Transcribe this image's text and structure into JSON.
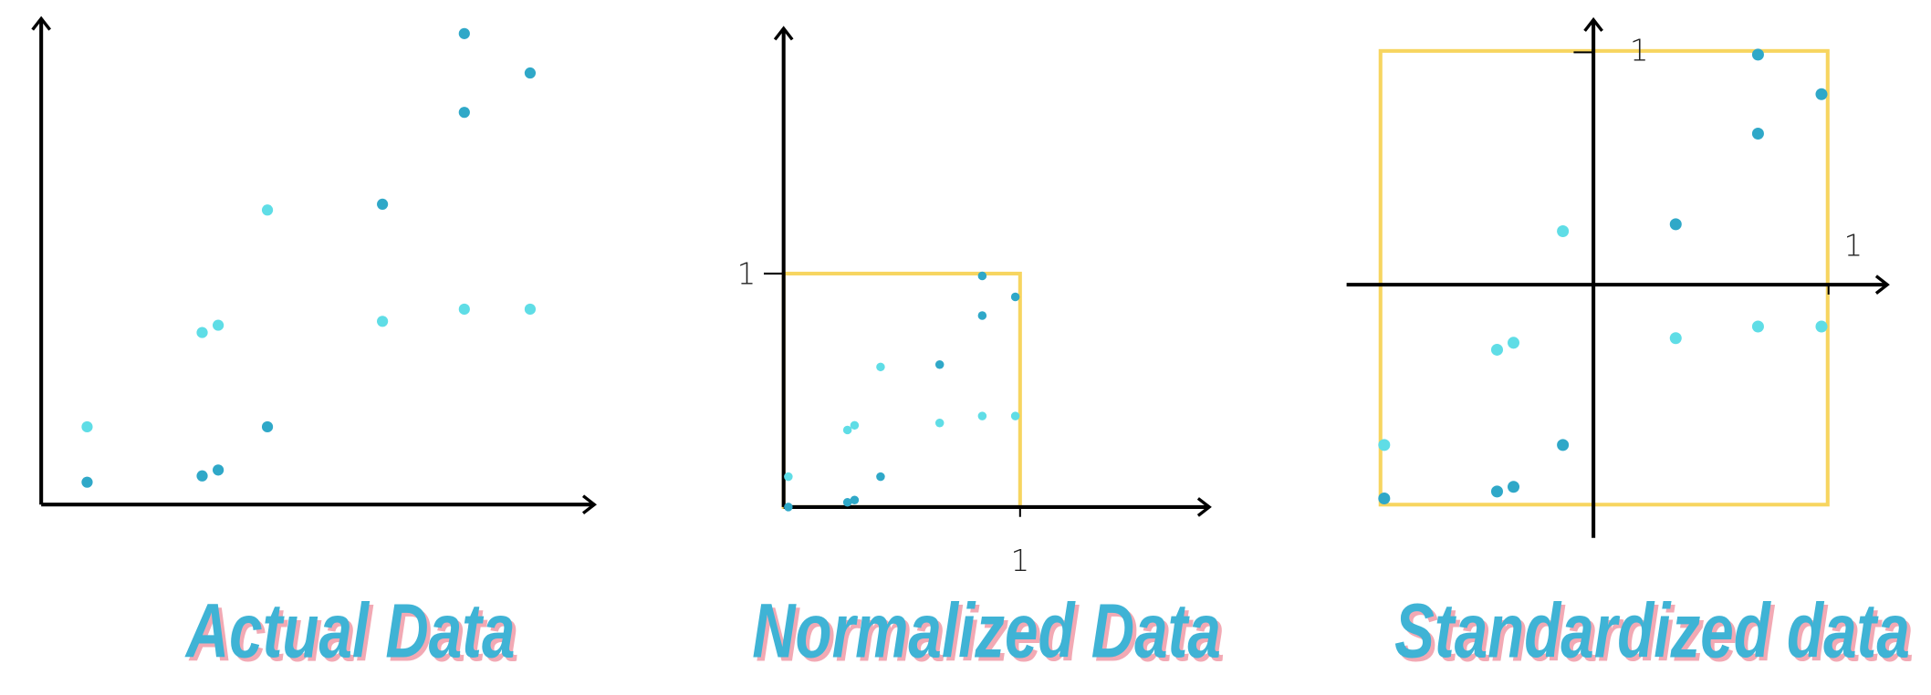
{
  "chart_data": [
    {
      "type": "scatter",
      "title": "Actual Data",
      "xlim": [
        0,
        10
      ],
      "ylim": [
        0,
        10
      ],
      "series": [
        {
          "color": "#2fa8c8",
          "x": [
            0.83,
            2.91,
            3.2,
            4.09,
            6.17,
            7.65,
            7.65,
            8.84
          ],
          "values": [
            0.46,
            0.59,
            0.71,
            1.6,
            6.18,
            8.07,
            9.69,
            8.88
          ]
        },
        {
          "color": "#5fdde6",
          "x": [
            0.83,
            2.91,
            3.2,
            4.09,
            6.17,
            7.65,
            8.84
          ],
          "values": [
            1.6,
            3.54,
            3.69,
            6.06,
            3.77,
            4.02,
            4.02
          ]
        }
      ]
    },
    {
      "type": "scatter",
      "title": "Normalized Data",
      "xlim": [
        0,
        1.8
      ],
      "ylim": [
        0,
        2.05
      ],
      "xticks": [
        1
      ],
      "yticks": [
        1
      ],
      "series": [
        {
          "color": "#2fa8c8",
          "x": [
            0.02,
            0.27,
            0.3,
            0.41,
            0.66,
            0.84,
            0.84,
            0.98
          ],
          "values": [
            0,
            0.02,
            0.03,
            0.13,
            0.61,
            0.82,
            0.99,
            0.9
          ]
        },
        {
          "color": "#5fdde6",
          "x": [
            0.02,
            0.27,
            0.3,
            0.41,
            0.66,
            0.84,
            0.98
          ],
          "values": [
            0.13,
            0.33,
            0.35,
            0.6,
            0.36,
            0.39,
            0.39
          ]
        }
      ]
    },
    {
      "type": "scatter",
      "title": "Standardized data",
      "xlim": [
        -1.05,
        1.25
      ],
      "ylim": [
        -1.09,
        1.14
      ],
      "xticks": [
        1
      ],
      "yticks": [
        1
      ],
      "series": [
        {
          "color": "#2fa8c8",
          "x": [
            -0.89,
            -0.41,
            -0.34,
            -0.13,
            0.35,
            0.7,
            0.7,
            0.97
          ],
          "values": [
            -0.92,
            -0.89,
            -0.87,
            -0.69,
            0.26,
            0.65,
            0.99,
            0.82
          ]
        },
        {
          "color": "#5fdde6",
          "x": [
            -0.89,
            -0.41,
            -0.34,
            -0.13,
            0.35,
            0.7,
            0.97
          ],
          "values": [
            -0.69,
            -0.28,
            -0.25,
            0.23,
            -0.23,
            -0.18,
            -0.18
          ]
        }
      ]
    }
  ]
}
